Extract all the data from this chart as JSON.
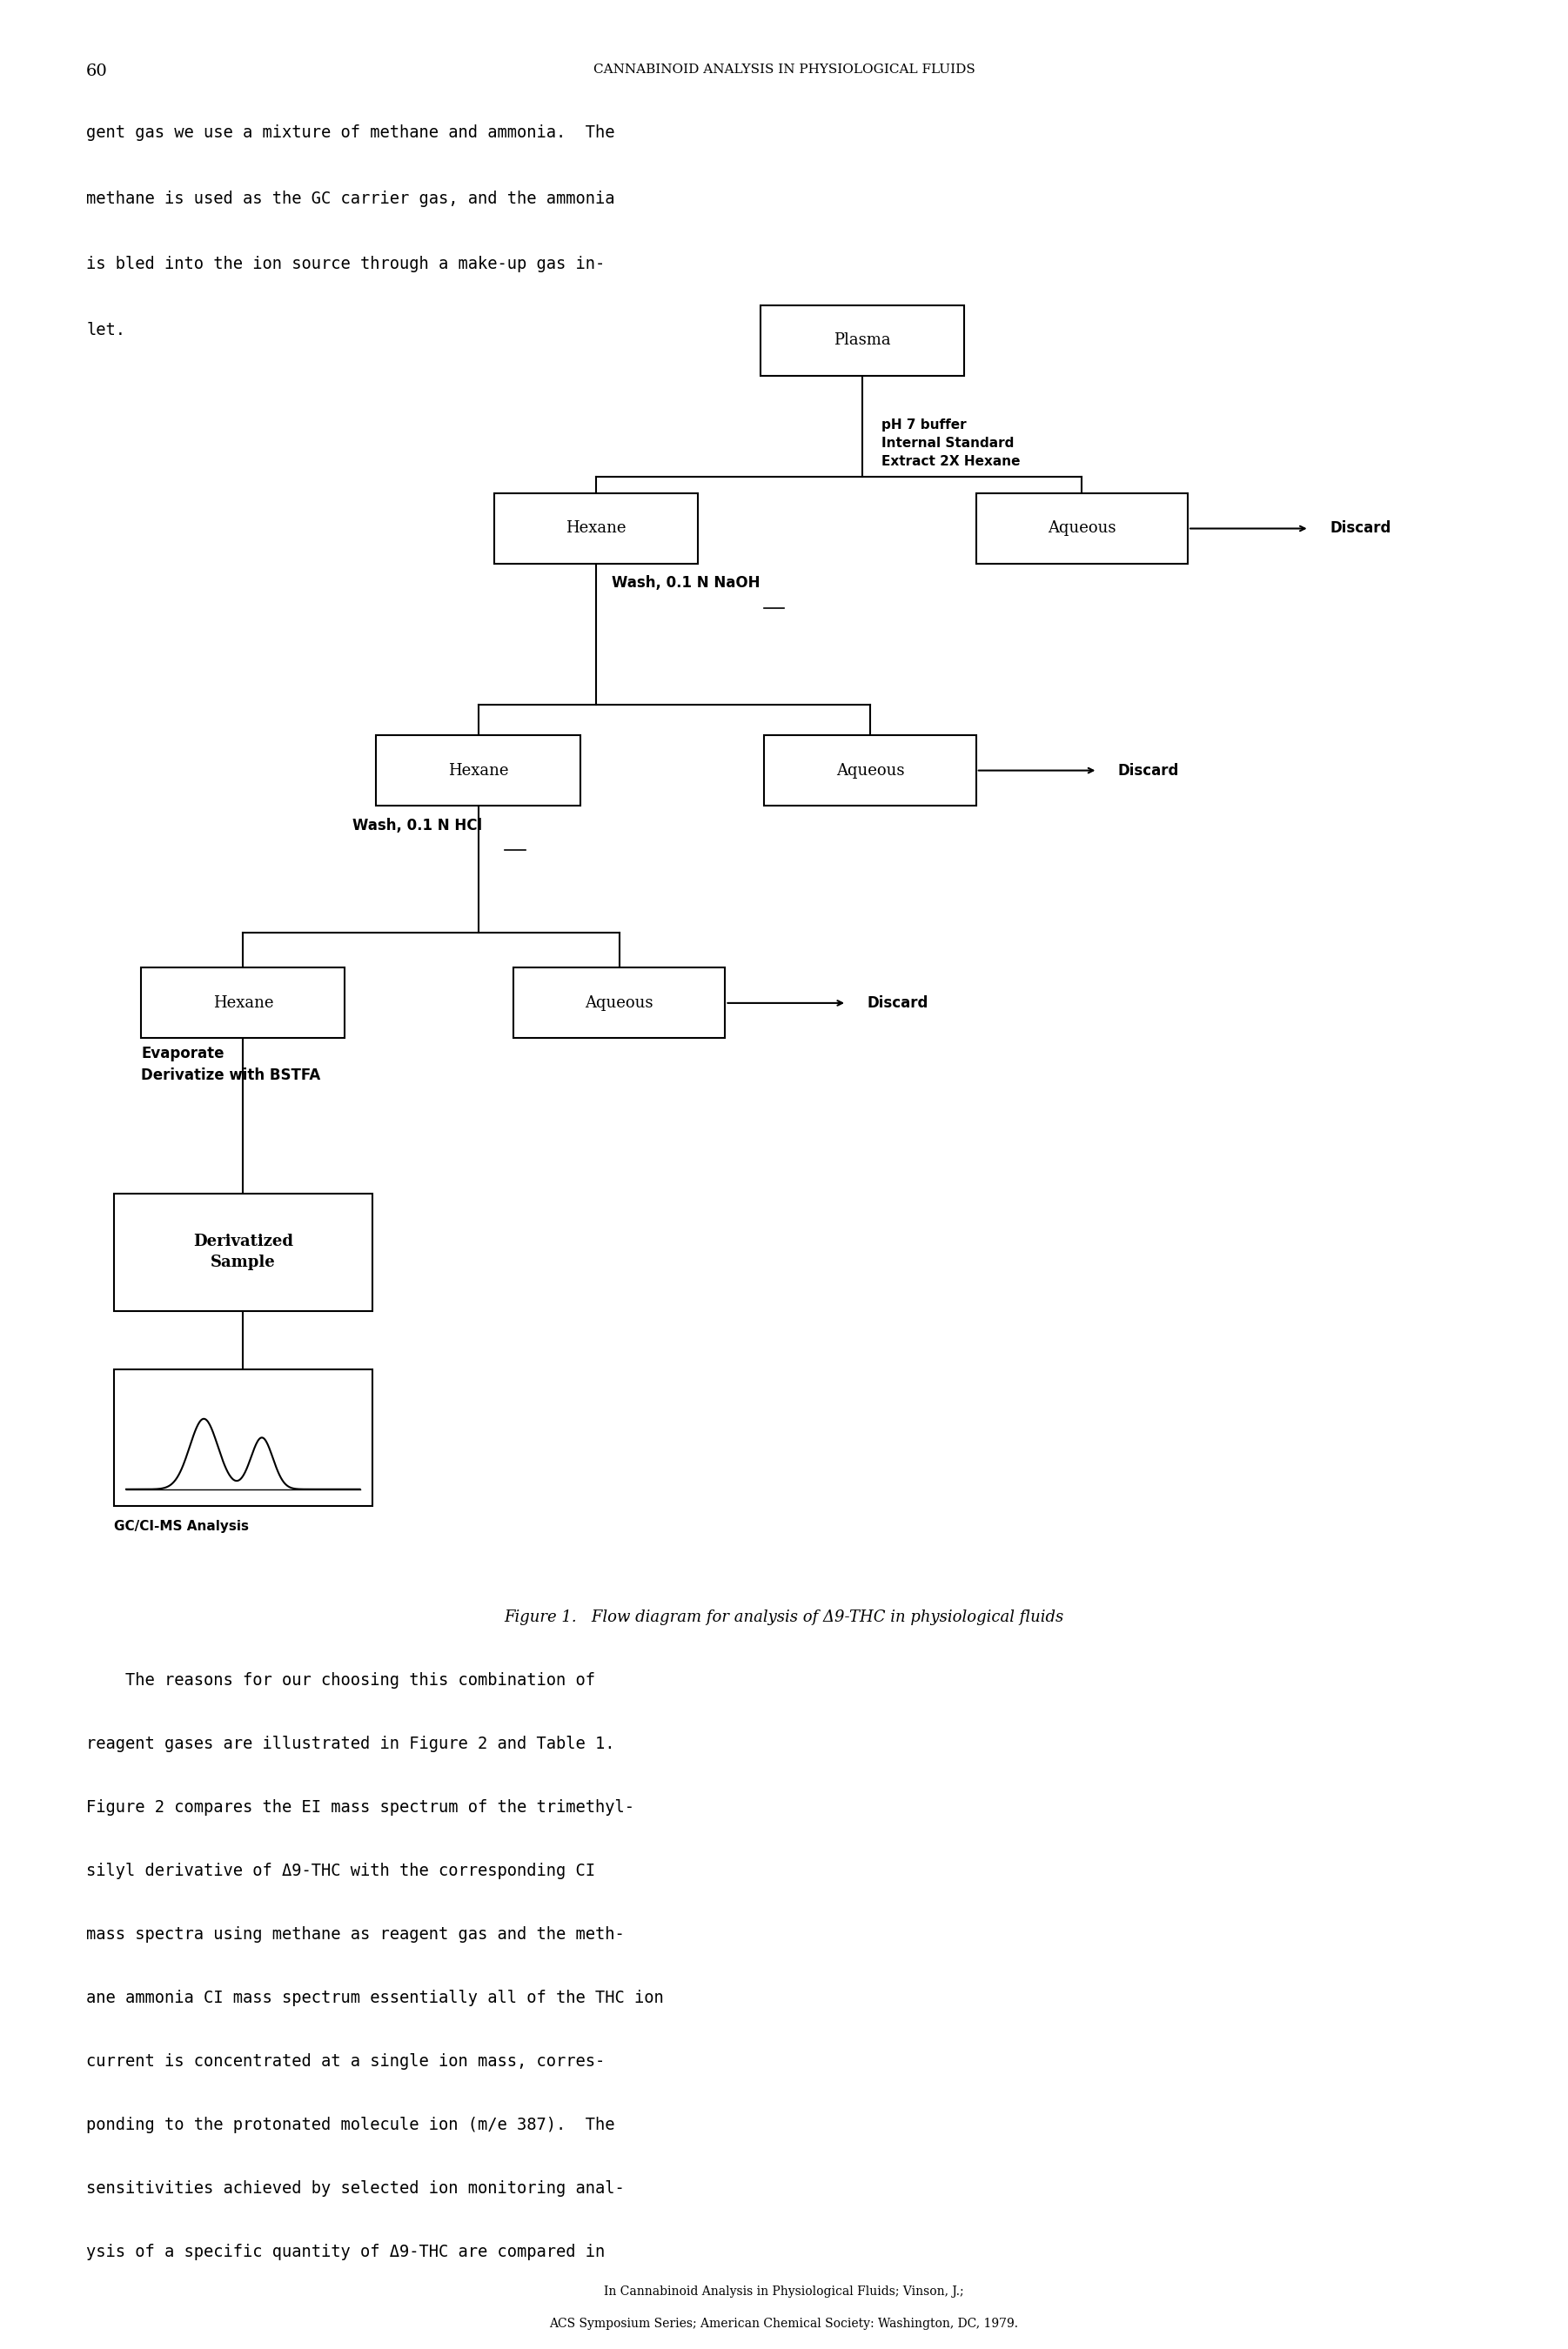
{
  "page_number": "60",
  "header_text": "CANNABINOID ANALYSIS IN PHYSIOLOGICAL FLUIDS",
  "intro_text": "gent gas we use a mixture of methane and ammonia.  The\nmethane is used as the GC carrier gas, and the ammonia\nis bled into the ion source through a make-up gas in-\nlet.",
  "caption": "Figure 1.   Flow diagram for analysis of Δ9-THC in physiological fluids",
  "footer_line1": "In Cannabinoid Analysis in Physiological Fluids; Vinson, J.;",
  "footer_line2": "ACS Symposium Series; American Chemical Society: Washington, DC, 1979.",
  "bg_color": "#ffffff",
  "text_color": "#000000"
}
